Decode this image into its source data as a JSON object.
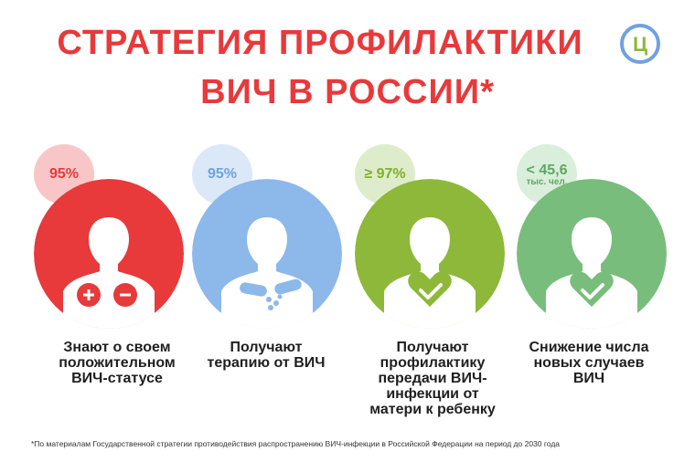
{
  "header": {
    "title_line1": "СТРАТЕГИЯ ПРОФИЛАКТИКИ",
    "title_line2": "ВИЧ В РОССИИ*",
    "logo_icon": "logo-icon",
    "logo_letter": "Ц"
  },
  "cards": [
    {
      "value": "95%",
      "sub": "",
      "caption_lines": [
        "Знают о своем",
        "положительном",
        "ВИЧ-статусе"
      ],
      "color": "#e8393b",
      "light_color": "#f9c6c7",
      "text_color": "#e8393b",
      "icon": "plus-minus-icon"
    },
    {
      "value": "95%",
      "sub": "",
      "caption_lines": [
        "Получают",
        "терапию от ВИЧ"
      ],
      "color": "#8cb8ea",
      "light_color": "#dbe8f8",
      "text_color": "#6fa2e0",
      "icon": "pills-icon"
    },
    {
      "value": "≥ 97%",
      "sub": "",
      "caption_lines": [
        "Получают",
        "профилактику",
        "передачи ВИЧ-",
        "инфекции от",
        "матери к ребенку"
      ],
      "color": "#8db83a",
      "light_color": "#dfeccb",
      "text_color": "#7fb02a",
      "icon": "checkmark-icon"
    },
    {
      "value": "< 45,6",
      "sub": "тыс. чел.",
      "caption_lines": [
        "Снижение числа",
        "новых случаев",
        "ВИЧ"
      ],
      "color": "#79bd7c",
      "light_color": "#d9eedb",
      "text_color": "#5da862",
      "icon": "checkmark-icon"
    }
  ],
  "footnote": "*По материалам Государственной стратегии противодействия распространению ВИЧ-инфекции в Российской Федерации на период до 2030 года"
}
